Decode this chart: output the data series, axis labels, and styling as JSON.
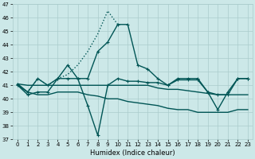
{
  "xlabel": "Humidex (Indice chaleur)",
  "bg_color": "#cce8e8",
  "grid_color": "#aacccc",
  "line_color": "#005555",
  "xlim": [
    -0.5,
    23.5
  ],
  "ylim": [
    37,
    47
  ],
  "yticks": [
    37,
    38,
    39,
    40,
    41,
    42,
    43,
    44,
    45,
    46,
    47
  ],
  "xticks": [
    0,
    1,
    2,
    3,
    4,
    5,
    6,
    7,
    8,
    9,
    10,
    11,
    12,
    13,
    14,
    15,
    16,
    17,
    18,
    19,
    20,
    21,
    22,
    23
  ],
  "series": [
    {
      "x": [
        0,
        1,
        2,
        3,
        4,
        5,
        6,
        7,
        8,
        9,
        10
      ],
      "y": [
        41.0,
        40.5,
        41.5,
        41.0,
        41.5,
        41.8,
        42.5,
        43.5,
        44.8,
        46.5,
        45.5
      ],
      "marker": null,
      "linestyle": "dotted",
      "linewidth": 1.0
    },
    {
      "x": [
        0,
        1,
        2,
        3,
        4,
        5,
        6,
        7,
        8,
        9,
        10,
        11,
        12,
        13,
        14,
        15,
        16,
        17,
        18,
        19,
        20,
        21,
        22,
        23
      ],
      "y": [
        41.1,
        40.5,
        41.5,
        41.0,
        41.5,
        42.5,
        41.5,
        41.5,
        43.5,
        44.2,
        45.5,
        45.5,
        42.5,
        42.2,
        41.5,
        41.0,
        41.5,
        41.5,
        41.5,
        40.5,
        39.2,
        40.5,
        41.5,
        41.5
      ],
      "marker": "+",
      "linestyle": "solid",
      "linewidth": 1.0
    },
    {
      "x": [
        0,
        1,
        2,
        3,
        4,
        5,
        6,
        7,
        8,
        9,
        10,
        11,
        12,
        13,
        14,
        15,
        16,
        17,
        18,
        19,
        20,
        21,
        22,
        23
      ],
      "y": [
        41.1,
        41.0,
        41.0,
        41.0,
        41.0,
        41.0,
        41.0,
        41.0,
        41.0,
        41.0,
        41.0,
        41.0,
        41.0,
        41.0,
        40.8,
        40.7,
        40.7,
        40.6,
        40.5,
        40.4,
        40.3,
        40.3,
        40.3,
        40.3
      ],
      "marker": null,
      "linestyle": "solid",
      "linewidth": 1.0
    },
    {
      "x": [
        0,
        1,
        2,
        3,
        4,
        5,
        6,
        7,
        8,
        9,
        10,
        11,
        12,
        13,
        14,
        15,
        16,
        17,
        18,
        19,
        20,
        21,
        22,
        23
      ],
      "y": [
        41.0,
        40.5,
        40.3,
        40.3,
        40.5,
        40.5,
        40.5,
        40.3,
        40.2,
        40.0,
        40.0,
        39.8,
        39.7,
        39.6,
        39.5,
        39.3,
        39.2,
        39.2,
        39.0,
        39.0,
        39.0,
        39.0,
        39.2,
        39.2
      ],
      "marker": null,
      "linestyle": "solid",
      "linewidth": 1.0
    },
    {
      "x": [
        0,
        1,
        2,
        3,
        4,
        5,
        6,
        7,
        8,
        9,
        10,
        11,
        12,
        13,
        14,
        15,
        16,
        17,
        18,
        19,
        20,
        21,
        22,
        23
      ],
      "y": [
        41.0,
        40.3,
        40.5,
        40.5,
        41.5,
        41.5,
        41.5,
        39.5,
        37.3,
        41.0,
        41.5,
        41.3,
        41.3,
        41.2,
        41.2,
        41.0,
        41.4,
        41.4,
        41.4,
        40.5,
        40.3,
        40.3,
        41.5,
        41.5
      ],
      "marker": "+",
      "linestyle": "solid",
      "linewidth": 1.0
    }
  ]
}
